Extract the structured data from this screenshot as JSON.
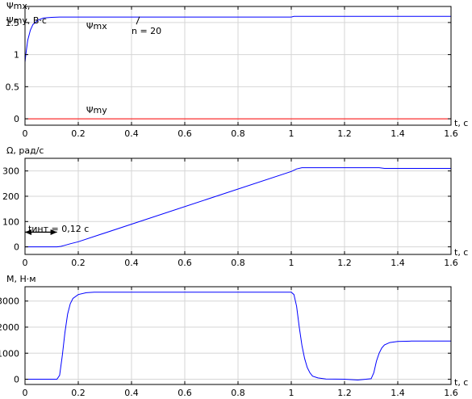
{
  "chart_data": [
    {
      "type": "line",
      "ylabel_lines": [
        "Ψmx,",
        "Ψmy, В·с"
      ],
      "xlabel": "t, с",
      "xlim": [
        0,
        1.6
      ],
      "ylim": [
        -0.1,
        1.75
      ],
      "xticks": [
        0,
        0.2,
        0.4,
        0.6,
        0.8,
        1,
        1.2,
        1.4,
        1.6
      ],
      "xtick_labels": [
        "0",
        "0.2",
        "0.4",
        "0.6",
        "0.8",
        "1",
        "1.2",
        "1.4",
        "1.6"
      ],
      "yticks": [
        0,
        0.5,
        1,
        1.5
      ],
      "ytick_labels": [
        "0",
        "0.5",
        "1",
        "1.5"
      ],
      "grid": true,
      "series": [
        {
          "name": "Ψmx",
          "color": "#0000ff",
          "x": [
            0,
            0.003,
            0.01,
            0.02,
            0.03,
            0.05,
            0.07,
            0.1,
            0.13,
            0.2,
            0.5,
            1.0,
            1.01,
            1.6
          ],
          "y": [
            0.88,
            1.0,
            1.22,
            1.38,
            1.47,
            1.54,
            1.57,
            1.58,
            1.585,
            1.585,
            1.585,
            1.585,
            1.595,
            1.595
          ]
        },
        {
          "name": "Ψmy",
          "color": "#ff0000",
          "x": [
            0,
            1.6
          ],
          "y": [
            0,
            0
          ]
        }
      ],
      "annotations": [
        {
          "text": "Ψmx",
          "x": 0.23,
          "y": 1.45
        },
        {
          "text": "n = 20",
          "x": 0.4,
          "y": 1.37,
          "arrow_to": [
            0.43,
            1.59
          ]
        },
        {
          "text": "Ψmy",
          "x": 0.23,
          "y": 0.14
        }
      ]
    },
    {
      "type": "line",
      "ylabel": "Ω, рад/с",
      "xlabel": "t, с",
      "xlim": [
        0,
        1.6
      ],
      "ylim": [
        -30,
        350
      ],
      "xticks": [
        0,
        0.2,
        0.4,
        0.6,
        0.8,
        1,
        1.2,
        1.4,
        1.6
      ],
      "xtick_labels": [
        "0",
        "0.2",
        "0.4",
        "0.6",
        "0.8",
        "1",
        "1.2",
        "1.4",
        "1.6"
      ],
      "yticks": [
        0,
        100,
        200,
        300
      ],
      "ytick_labels": [
        "0",
        "100",
        "200",
        "300"
      ],
      "grid": true,
      "series": [
        {
          "color": "#0000ff",
          "x": [
            0,
            0.12,
            0.135,
            0.15,
            0.17,
            0.2,
            1.0,
            1.02,
            1.04,
            1.33,
            1.35,
            1.6
          ],
          "y": [
            0,
            0,
            2,
            6,
            12,
            20,
            298,
            308,
            313,
            313,
            310,
            310
          ]
        }
      ],
      "annotations": [
        {
          "text": "tинт = 0,12 с",
          "x": 0.012,
          "y": 72,
          "dimension_arrow_x": [
            0,
            0.12
          ],
          "dimension_arrow_y": 58
        }
      ]
    },
    {
      "type": "line",
      "ylabel": "M, Н·м",
      "xlabel": "t, с",
      "xlim": [
        0,
        1.6
      ],
      "ylim": [
        -200,
        3550
      ],
      "xticks": [
        0,
        0.2,
        0.4,
        0.6,
        0.8,
        1,
        1.2,
        1.4,
        1.6
      ],
      "xtick_labels": [
        "0",
        "0.2",
        "0.4",
        "0.6",
        "0.8",
        "1",
        "1.2",
        "1.4",
        "1.6"
      ],
      "yticks": [
        0,
        1000,
        2000,
        3000
      ],
      "ytick_labels": [
        "0",
        "1000",
        "2000",
        "3000"
      ],
      "grid": true,
      "series": [
        {
          "color": "#0000ff",
          "x": [
            0,
            0.12,
            0.13,
            0.14,
            0.15,
            0.16,
            0.17,
            0.18,
            0.2,
            0.23,
            0.26,
            1.0,
            1.01,
            1.02,
            1.03,
            1.04,
            1.05,
            1.06,
            1.07,
            1.08,
            1.1,
            1.13,
            1.2,
            1.25,
            1.3,
            1.31,
            1.32,
            1.33,
            1.34,
            1.35,
            1.37,
            1.4,
            1.45,
            1.6
          ],
          "y": [
            0,
            0,
            150,
            900,
            1800,
            2500,
            2900,
            3100,
            3250,
            3320,
            3340,
            3340,
            3250,
            2800,
            2000,
            1300,
            800,
            450,
            250,
            120,
            50,
            10,
            0,
            -30,
            20,
            250,
            700,
            1000,
            1200,
            1320,
            1410,
            1450,
            1465,
            1465
          ]
        }
      ]
    }
  ]
}
